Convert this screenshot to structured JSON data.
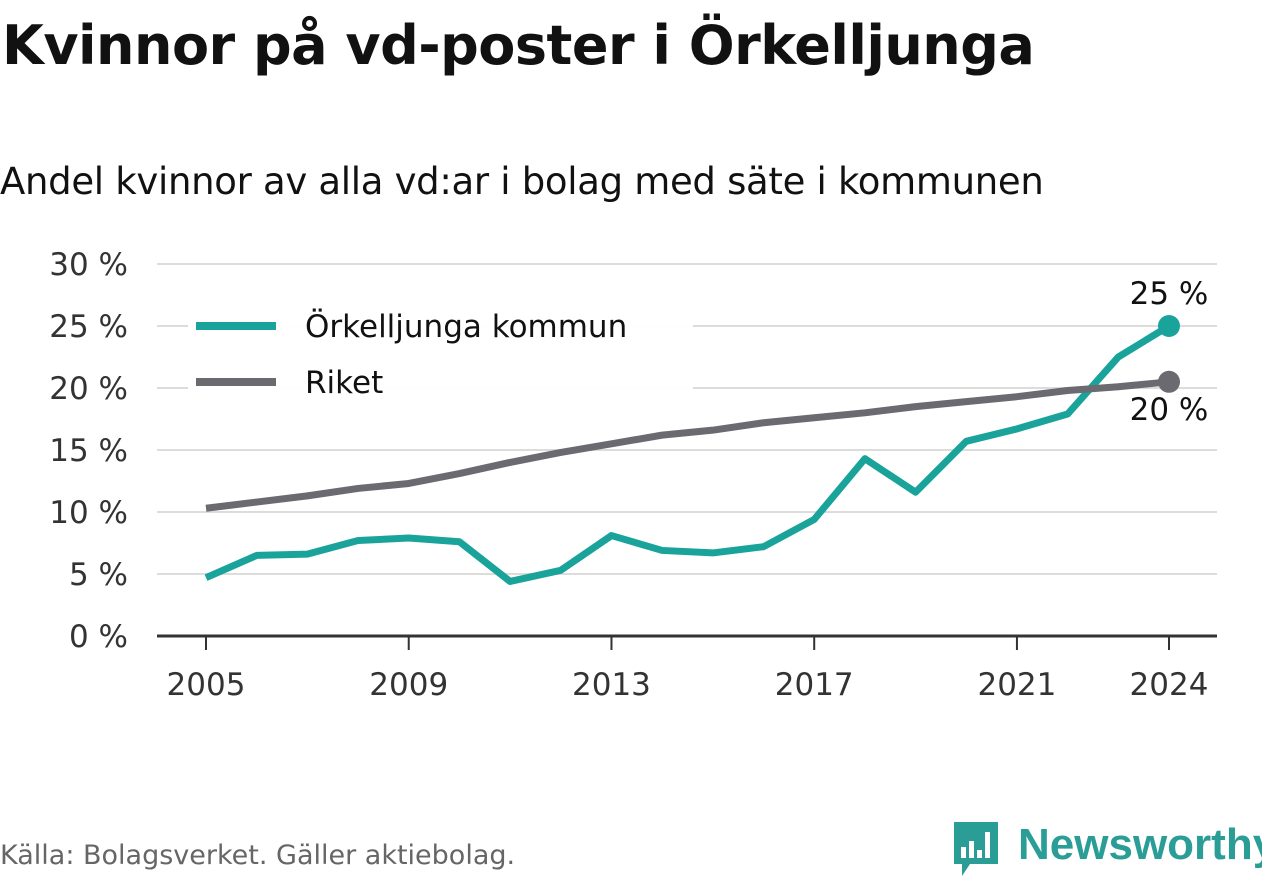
{
  "title": "Kvinnor på vd-poster i Örkelljunga",
  "subtitle": "Andel kvinnor av alla vd:ar i bolag med säte i kommunen",
  "source": "Källa: Bolagsverket. Gäller aktiebolag.",
  "brand": {
    "name": "Newsworthy",
    "icon": "newsworthy-chart-bubble-icon",
    "color": "#2a9d97"
  },
  "chart_data": {
    "type": "line",
    "x": [
      2005,
      2006,
      2007,
      2008,
      2009,
      2010,
      2011,
      2012,
      2013,
      2014,
      2015,
      2016,
      2017,
      2018,
      2019,
      2020,
      2021,
      2022,
      2023,
      2024
    ],
    "x_ticks": [
      2005,
      2009,
      2013,
      2017,
      2021,
      2024
    ],
    "y_ticks": [
      0,
      5,
      10,
      15,
      20,
      25,
      30
    ],
    "y_tick_labels": [
      "0 %",
      "5 %",
      "10 %",
      "15 %",
      "20 %",
      "25 %",
      "30 %"
    ],
    "ylim": [
      0,
      30
    ],
    "xlim": [
      2004,
      2025
    ],
    "grid": true,
    "legend_position": "top-left",
    "series": [
      {
        "name": "Örkelljunga kommun",
        "color": "#1aa39a",
        "values": [
          4.7,
          6.5,
          6.6,
          7.7,
          7.9,
          7.6,
          4.4,
          5.3,
          8.1,
          6.9,
          6.7,
          7.2,
          9.4,
          14.3,
          11.6,
          15.7,
          16.7,
          17.9,
          22.5,
          25.0
        ],
        "end_label": "25 %"
      },
      {
        "name": "Riket",
        "color": "#6b6a70",
        "values": [
          10.3,
          10.8,
          11.3,
          11.9,
          12.3,
          13.1,
          14.0,
          14.8,
          15.5,
          16.2,
          16.6,
          17.2,
          17.6,
          18.0,
          18.5,
          18.9,
          19.3,
          19.8,
          20.1,
          20.5
        ],
        "end_label": "20 %"
      }
    ]
  }
}
